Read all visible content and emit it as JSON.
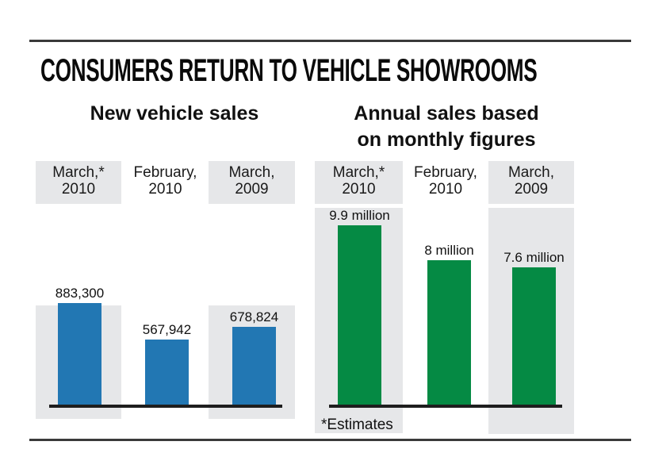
{
  "headline": "CONSUMERS RETURN TO VEHICLE SHOWROOMS",
  "footnote": "*Estimates",
  "colors": {
    "new_sales_bar": "#2277b3",
    "annual_sales_bar": "#058a44",
    "highlight_shade": "#e6e7e9",
    "rule": "#3a3a3a"
  },
  "chart_data": [
    {
      "type": "bar",
      "title": "New vehicle sales",
      "categories": [
        "March,* 2010",
        "February, 2010",
        "March, 2009"
      ],
      "category_lines": [
        [
          "March,*",
          "2010"
        ],
        [
          "February,",
          "2010"
        ],
        [
          "March,",
          "2009"
        ]
      ],
      "values": [
        883300,
        567942,
        678824
      ],
      "value_labels": [
        "883,300",
        "567,942",
        "678,824"
      ],
      "highlighted": [
        true,
        false,
        true
      ],
      "xlabel": "",
      "ylabel": "",
      "ylim": [
        0,
        1000000
      ],
      "grid": false,
      "legend": "none"
    },
    {
      "type": "bar",
      "title": "Annual sales based on monthly figures",
      "title_lines": [
        "Annual sales based",
        "on monthly figures"
      ],
      "categories": [
        "March,* 2010",
        "February, 2010",
        "March, 2009"
      ],
      "category_lines": [
        [
          "March,*",
          "2010"
        ],
        [
          "February,",
          "2010"
        ],
        [
          "March,",
          "2009"
        ]
      ],
      "values": [
        9.9,
        8.0,
        7.6
      ],
      "value_labels": [
        "9.9 million",
        "8 million",
        "7.6 million"
      ],
      "unit": "million",
      "highlighted": [
        true,
        false,
        true
      ],
      "xlabel": "",
      "ylabel": "",
      "ylim": [
        0,
        10.4
      ],
      "grid": false,
      "legend": "none"
    }
  ]
}
